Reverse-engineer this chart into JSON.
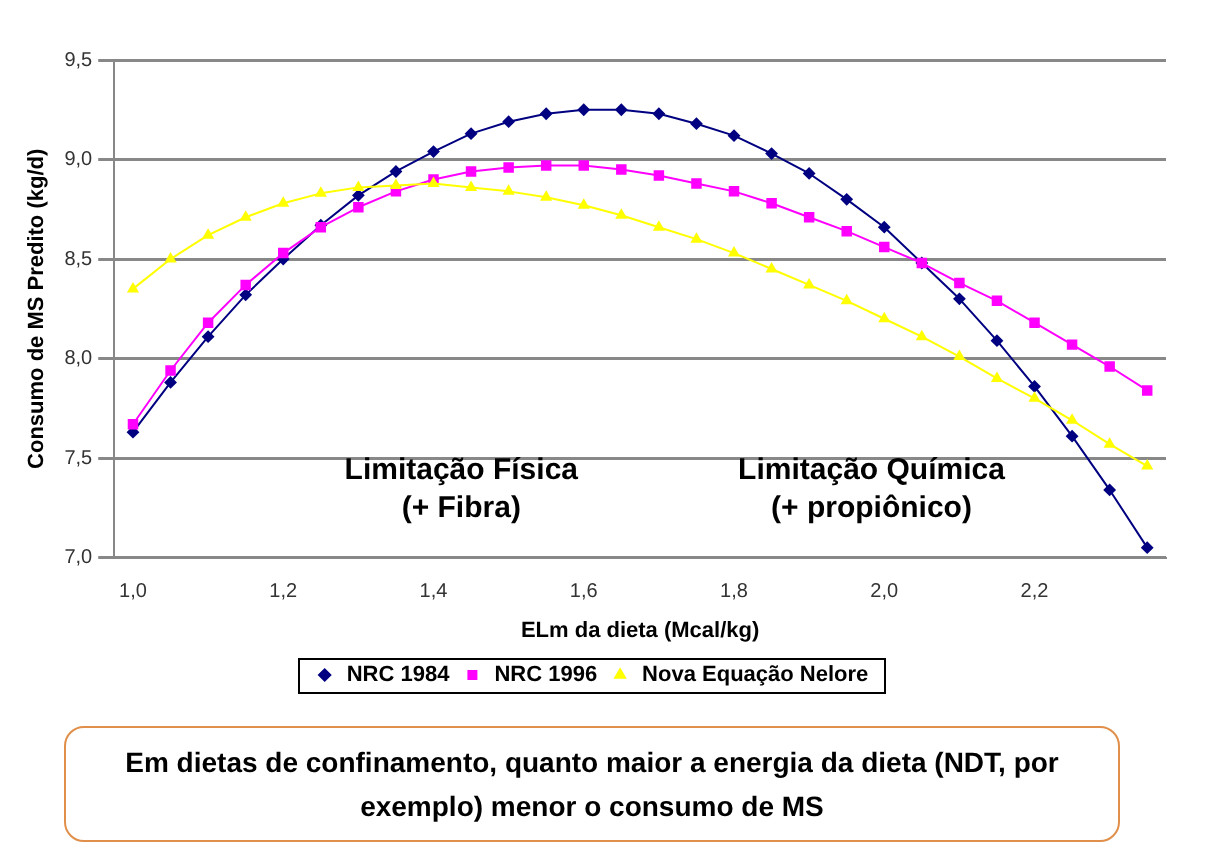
{
  "chart_data": {
    "type": "line",
    "xlabel": "ELm da dieta (Mcal/kg)",
    "ylabel": "Consumo de MS Predito (kg/d)",
    "x": [
      1.0,
      1.05,
      1.1,
      1.15,
      1.2,
      1.25,
      1.3,
      1.35,
      1.4,
      1.45,
      1.5,
      1.55,
      1.6,
      1.65,
      1.7,
      1.75,
      1.8,
      1.85,
      1.9,
      1.95,
      2.0,
      2.05,
      2.1,
      2.15,
      2.2,
      2.25,
      2.3,
      2.35
    ],
    "series": [
      {
        "name": "NRC 1984",
        "color": "#000080",
        "marker": "diamond",
        "values": [
          7.63,
          7.88,
          8.11,
          8.32,
          8.5,
          8.67,
          8.82,
          8.94,
          9.04,
          9.13,
          9.19,
          9.23,
          9.25,
          9.25,
          9.23,
          9.18,
          9.12,
          9.03,
          8.93,
          8.8,
          8.66,
          8.48,
          8.3,
          8.09,
          7.86,
          7.61,
          7.34,
          7.05
        ]
      },
      {
        "name": "NRC 1996",
        "color": "#ff00ff",
        "marker": "square",
        "values": [
          7.67,
          7.94,
          8.18,
          8.37,
          8.53,
          8.66,
          8.76,
          8.84,
          8.9,
          8.94,
          8.96,
          8.97,
          8.97,
          8.95,
          8.92,
          8.88,
          8.84,
          8.78,
          8.71,
          8.64,
          8.56,
          8.48,
          8.38,
          8.29,
          8.18,
          8.07,
          7.96,
          7.84
        ]
      },
      {
        "name": "Nova Equação Nelore",
        "color": "#ffff00",
        "marker": "triangle",
        "values": [
          8.35,
          8.5,
          8.62,
          8.71,
          8.78,
          8.83,
          8.86,
          8.87,
          8.88,
          8.86,
          8.84,
          8.81,
          8.77,
          8.72,
          8.66,
          8.6,
          8.53,
          8.45,
          8.37,
          8.29,
          8.2,
          8.11,
          8.01,
          7.9,
          7.8,
          7.69,
          7.57,
          7.46
        ]
      }
    ],
    "xlim": [
      0.975,
      2.375
    ],
    "xticks": [
      {
        "value": 1.0,
        "label": "1,0"
      },
      {
        "value": 1.2,
        "label": "1,2"
      },
      {
        "value": 1.4,
        "label": "1,4"
      },
      {
        "value": 1.6,
        "label": "1,6"
      },
      {
        "value": 1.8,
        "label": "1,8"
      },
      {
        "value": 2.0,
        "label": "2,0"
      },
      {
        "value": 2.2,
        "label": "2,2"
      }
    ],
    "ylim": [
      7.0,
      9.5
    ],
    "yticks": [
      {
        "value": 7.0,
        "label": "7,0"
      },
      {
        "value": 7.5,
        "label": "7,5"
      },
      {
        "value": 8.0,
        "label": "8,0"
      },
      {
        "value": 8.5,
        "label": "8,5"
      },
      {
        "value": 9.0,
        "label": "9,0"
      },
      {
        "value": 9.5,
        "label": "9,5"
      }
    ],
    "grid": "y",
    "legend": "bottom",
    "line_style": "solid",
    "annotations": [
      "Limitação Física\n(+ Fibra)",
      "Limitação Química\n(+ propiônico)",
      "Em dietas de confinamento, quanto maior a energia da dieta (NDT, por exemplo) menor o consumo de MS"
    ]
  }
}
